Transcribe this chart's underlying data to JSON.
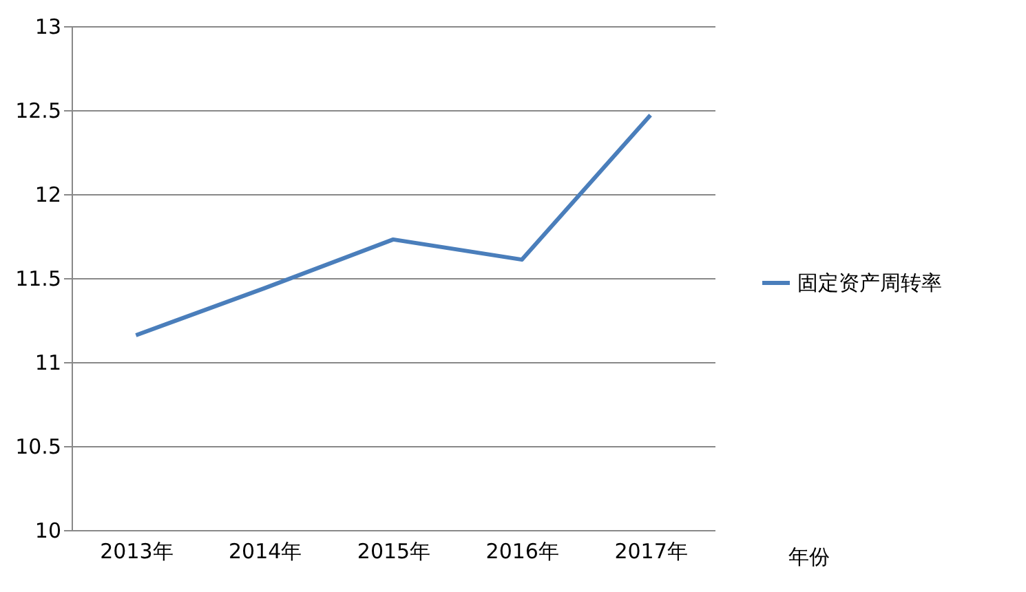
{
  "chart_data": {
    "type": "line",
    "xlabel": "年份",
    "categories": [
      "2013年",
      "2014年",
      "2015年",
      "2016年",
      "2017年"
    ],
    "series": [
      {
        "name": "固定资产周转率",
        "color": "#4a7ebb",
        "values": [
          11.16,
          11.44,
          11.73,
          11.61,
          12.47
        ]
      }
    ],
    "ylim": [
      10,
      13
    ],
    "yticks": [
      10,
      10.5,
      11,
      11.5,
      12,
      12.5,
      13
    ],
    "grid": "y",
    "legend": "right",
    "marker": "none",
    "line_style": "solid"
  }
}
